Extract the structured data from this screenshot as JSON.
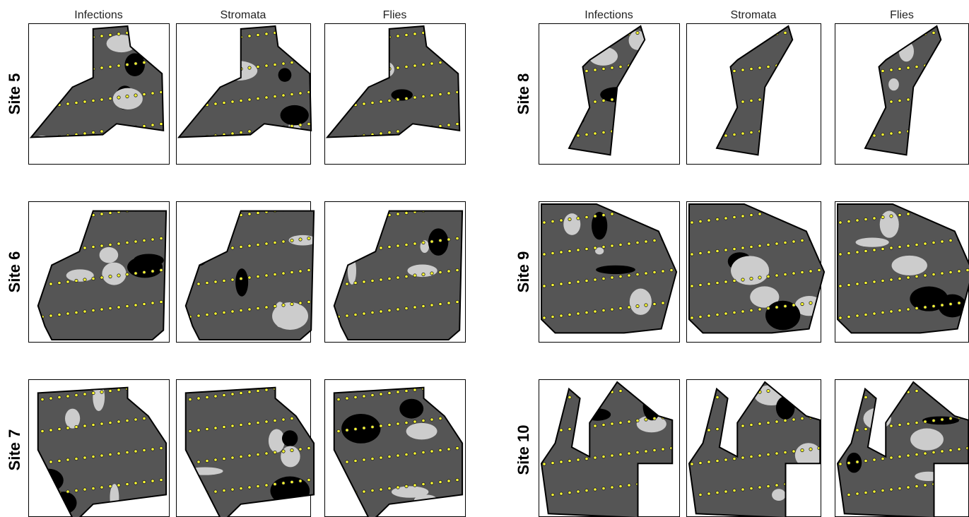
{
  "groups": [
    {
      "columns": [
        "Infections",
        "Stromata",
        "Flies"
      ],
      "sites": [
        "Site 5",
        "Site 6",
        "Site 7"
      ]
    },
    {
      "columns": [
        "Infections",
        "Stromata",
        "Flies"
      ],
      "sites": [
        "Site 8",
        "Site 9",
        "Site 10"
      ]
    }
  ]
}
